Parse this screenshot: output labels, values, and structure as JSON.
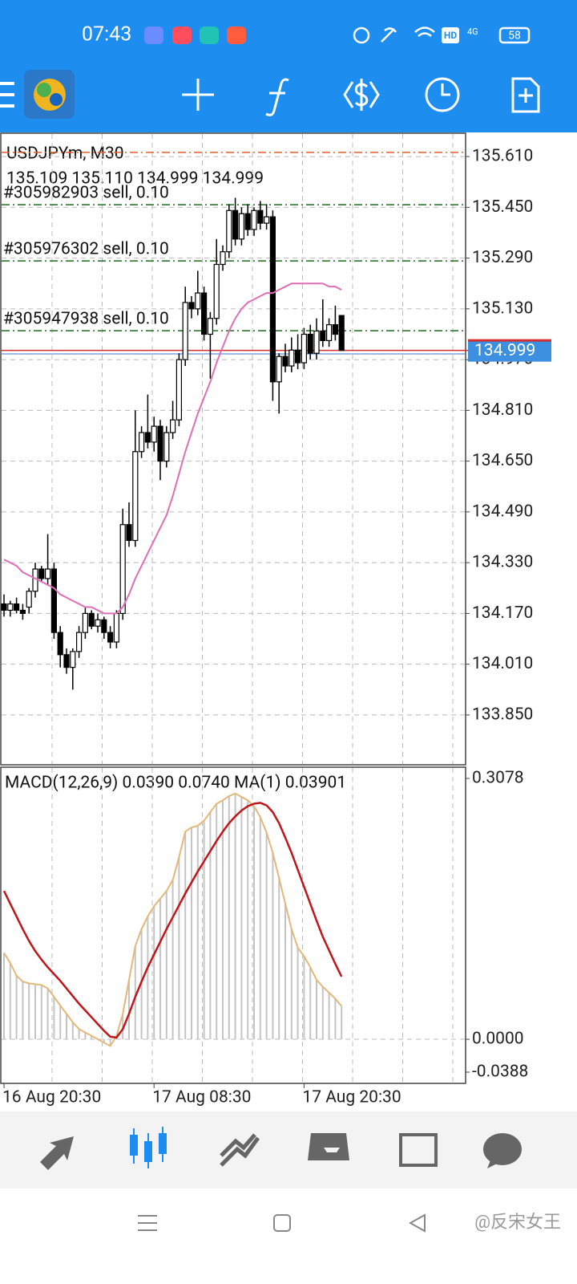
{
  "status_bar": {
    "time": "07:43",
    "hd": "HD",
    "network": "4G",
    "battery": "58"
  },
  "watermark": "@反宋女王",
  "chart_data": [
    {
      "type": "candlestick",
      "title": "USDJPYm, M30",
      "ohlc_label": "135.109 135.110 134.999 134.999",
      "ylim": [
        133.693,
        135.681
      ],
      "yticks": [
        {
          "value": 135.61,
          "label": "135.610"
        },
        {
          "value": 135.45,
          "label": "135.450"
        },
        {
          "value": 135.29,
          "label": "135.290"
        },
        {
          "value": 135.13,
          "label": "135.130"
        },
        {
          "value": 134.97,
          "label": "134.970"
        },
        {
          "value": 134.81,
          "label": "134.810"
        },
        {
          "value": 134.65,
          "label": "134.650"
        },
        {
          "value": 134.49,
          "label": "134.490"
        },
        {
          "value": 134.33,
          "label": "134.330"
        },
        {
          "value": 134.17,
          "label": "134.170"
        },
        {
          "value": 134.01,
          "label": "134.010"
        },
        {
          "value": 133.85,
          "label": "133.850"
        }
      ],
      "grid": true,
      "open": [
        134.2,
        134.18,
        134.2,
        134.18,
        134.19,
        134.24,
        134.31,
        134.28,
        134.31,
        134.11,
        134.04,
        134.0,
        134.05,
        134.11,
        134.17,
        134.13,
        134.15,
        134.11,
        134.08,
        134.17,
        134.45,
        134.4,
        134.68,
        134.74,
        134.71,
        134.76,
        134.65,
        134.74,
        134.78,
        134.97,
        135.15,
        135.13,
        135.18,
        135.05,
        135.1,
        135.27,
        135.31,
        135.44,
        135.35,
        135.43,
        135.38,
        135.44,
        135.4,
        135.42,
        134.9,
        134.98,
        134.95,
        135.0,
        134.96,
        135.05,
        134.99,
        135.06,
        135.03,
        135.08,
        135.109
      ],
      "high": [
        134.23,
        134.21,
        134.22,
        134.2,
        134.25,
        134.33,
        134.32,
        134.42,
        134.33,
        134.13,
        134.06,
        134.06,
        134.13,
        134.19,
        134.18,
        134.17,
        134.16,
        134.13,
        134.18,
        134.5,
        134.52,
        134.81,
        134.76,
        134.86,
        134.79,
        134.78,
        134.76,
        134.84,
        134.99,
        135.2,
        135.17,
        135.25,
        135.2,
        135.12,
        135.35,
        135.33,
        135.46,
        135.48,
        135.45,
        135.46,
        135.45,
        135.47,
        135.46,
        135.44,
        134.99,
        135.02,
        135.04,
        135.05,
        135.07,
        135.08,
        135.1,
        135.16,
        135.1,
        135.14,
        135.11
      ],
      "low": [
        134.16,
        134.16,
        134.17,
        134.15,
        134.17,
        134.22,
        134.27,
        134.26,
        134.09,
        134.0,
        133.98,
        133.93,
        134.03,
        134.09,
        134.12,
        134.11,
        134.09,
        134.06,
        134.06,
        134.15,
        134.38,
        134.38,
        134.66,
        134.69,
        134.68,
        134.59,
        134.63,
        134.72,
        134.76,
        134.95,
        135.1,
        135.11,
        135.03,
        134.91,
        135.08,
        135.25,
        135.29,
        135.33,
        135.33,
        135.36,
        135.36,
        135.38,
        135.38,
        134.84,
        134.8,
        134.93,
        134.93,
        134.94,
        134.94,
        134.97,
        134.97,
        135.01,
        135.01,
        135.03,
        134.999
      ],
      "close": [
        134.18,
        134.2,
        134.18,
        134.17,
        134.24,
        134.31,
        134.28,
        134.31,
        134.11,
        134.04,
        134.0,
        134.05,
        134.11,
        134.17,
        134.13,
        134.15,
        134.11,
        134.08,
        134.17,
        134.45,
        134.4,
        134.68,
        134.74,
        134.71,
        134.76,
        134.65,
        134.74,
        134.78,
        134.97,
        135.15,
        135.13,
        135.18,
        135.05,
        135.1,
        135.27,
        135.31,
        135.44,
        135.35,
        135.43,
        135.38,
        135.44,
        135.4,
        135.42,
        134.9,
        134.98,
        134.95,
        135.0,
        134.96,
        135.05,
        134.99,
        135.06,
        135.03,
        135.08,
        135.05,
        134.999
      ],
      "ma": {
        "color": "#de6fb6",
        "values": [
          134.34,
          134.33,
          134.32,
          134.3,
          134.29,
          134.28,
          134.27,
          134.26,
          134.25,
          134.23,
          134.22,
          134.21,
          134.2,
          134.19,
          134.19,
          134.18,
          134.17,
          134.17,
          134.17,
          134.19,
          134.23,
          134.28,
          134.32,
          134.36,
          134.4,
          134.44,
          134.48,
          134.54,
          134.61,
          134.68,
          134.74,
          134.8,
          134.85,
          134.9,
          134.96,
          135.01,
          135.06,
          135.1,
          135.13,
          135.15,
          135.16,
          135.17,
          135.18,
          135.18,
          135.19,
          135.2,
          135.21,
          135.21,
          135.21,
          135.21,
          135.21,
          135.21,
          135.2,
          135.2,
          135.19
        ]
      },
      "orders": [
        {
          "label": "#305982903 sell, 0.10",
          "price": 135.458
        },
        {
          "label": "#305976302 sell, 0.10",
          "price": 135.281
        },
        {
          "label": "#305947938 sell, 0.10",
          "price": 135.061
        }
      ],
      "order_color": "#1f6b1f",
      "levels": [
        {
          "price": 135.623,
          "color": "#e0622a"
        },
        {
          "price": 134.988,
          "color": "#7aa6e0"
        }
      ],
      "bid": 134.999,
      "bid_color": "#d32f2f"
    },
    {
      "type": "macd",
      "title": "MACD(12,26,9) 0.0390 0.0740 MA(1) 0.03901",
      "ylim": [
        -0.0388,
        0.3078
      ],
      "yticks": [
        0.3078,
        {
          "value": 0,
          "label": "0.0000"
        },
        -0.0388
      ],
      "categories": [
        "16 Aug 20:30",
        null,
        null,
        null,
        null,
        null,
        null,
        null,
        null,
        null,
        null,
        null,
        null,
        null,
        null,
        null,
        null,
        null,
        null,
        null,
        null,
        null,
        null,
        null,
        "17 Aug 08:30",
        null,
        null,
        null,
        null,
        null,
        null,
        null,
        null,
        null,
        null,
        null,
        null,
        null,
        null,
        null,
        null,
        null,
        null,
        null,
        null,
        null,
        null,
        null,
        "17 Aug 20:30",
        null,
        null,
        null,
        null,
        null,
        null
      ],
      "histogram": {
        "color": "#c4c4c4",
        "line_color": "#e3b878",
        "values": [
          0.102,
          0.09,
          0.075,
          0.068,
          0.066,
          0.065,
          0.064,
          0.06,
          0.05,
          0.04,
          0.03,
          0.02,
          0.012,
          0.008,
          0.004,
          0.0,
          -0.004,
          -0.008,
          0.004,
          0.03,
          0.07,
          0.11,
          0.13,
          0.145,
          0.157,
          0.166,
          0.175,
          0.188,
          0.215,
          0.245,
          0.25,
          0.252,
          0.258,
          0.268,
          0.278,
          0.282,
          0.287,
          0.29,
          0.286,
          0.282,
          0.275,
          0.262,
          0.244,
          0.22,
          0.19,
          0.16,
          0.13,
          0.108,
          0.098,
          0.085,
          0.07,
          0.062,
          0.055,
          0.048,
          0.039
        ]
      },
      "signal": {
        "color": "#c0161b",
        "values": [
          0.175,
          0.16,
          0.145,
          0.13,
          0.116,
          0.104,
          0.094,
          0.085,
          0.077,
          0.069,
          0.06,
          0.051,
          0.042,
          0.034,
          0.026,
          0.018,
          0.01,
          0.003,
          0.002,
          0.012,
          0.03,
          0.05,
          0.068,
          0.085,
          0.1,
          0.115,
          0.13,
          0.144,
          0.158,
          0.172,
          0.185,
          0.198,
          0.21,
          0.222,
          0.234,
          0.245,
          0.255,
          0.263,
          0.27,
          0.275,
          0.278,
          0.279,
          0.276,
          0.268,
          0.255,
          0.238,
          0.22,
          0.2,
          0.18,
          0.16,
          0.14,
          0.121,
          0.105,
          0.089,
          0.074
        ]
      },
      "grid": true
    }
  ]
}
